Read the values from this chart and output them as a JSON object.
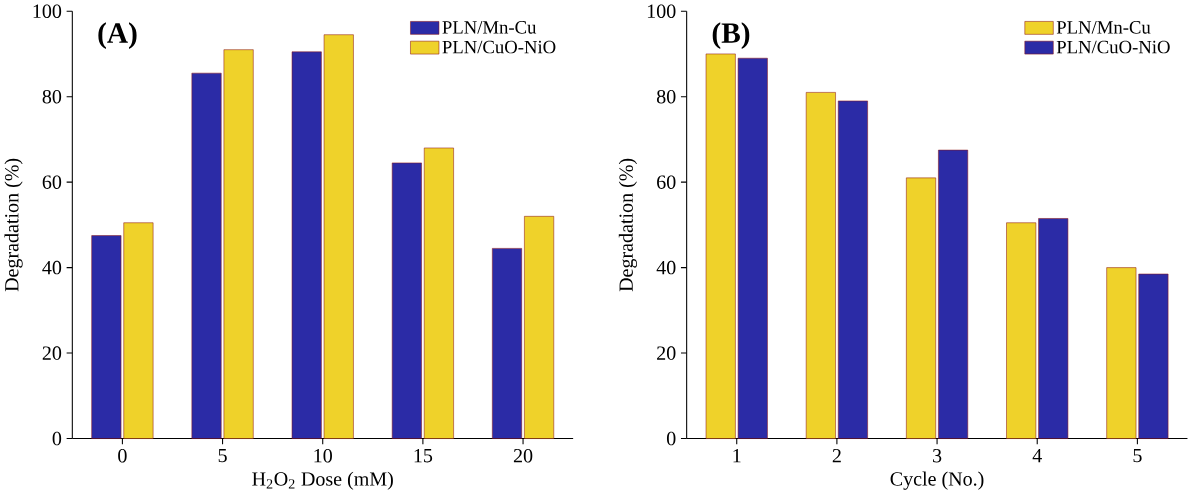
{
  "chart_data": [
    {
      "type": "bar",
      "annotations": [
        "(A)"
      ],
      "xlabel": "H$_{2}$O$_{2}$ Dose (mM)",
      "ylabel": "Degradation (%)",
      "categories": [
        "0",
        "5",
        "10",
        "15",
        "20"
      ],
      "series": [
        {
          "name": "PLN/Mn-Cu",
          "color": "#2b2ba6",
          "values": [
            47.5,
            85.5,
            90.5,
            64.5,
            44.5
          ]
        },
        {
          "name": "PLN/CuO-NiO",
          "color": "#efd22a",
          "values": [
            50.5,
            91,
            94.5,
            68,
            52
          ]
        }
      ],
      "ylim": [
        0,
        100
      ],
      "yticks": [
        0,
        20,
        40,
        60,
        80,
        100
      ],
      "legend": "top right"
    },
    {
      "type": "bar",
      "annotations": [
        "(B)"
      ],
      "xlabel": "Cycle (No.)",
      "ylabel": "Degradation (%)",
      "categories": [
        "1",
        "2",
        "3",
        "4",
        "5"
      ],
      "series": [
        {
          "name": "PLN/Mn-Cu",
          "color": "#efd22a",
          "values": [
            90,
            81,
            61,
            50.5,
            40
          ]
        },
        {
          "name": "PLN/CuO-NiO",
          "color": "#2b2ba6",
          "values": [
            89,
            79,
            67.5,
            51.5,
            38.5
          ]
        }
      ],
      "ylim": [
        0,
        100
      ],
      "yticks": [
        0,
        20,
        40,
        60,
        80,
        100
      ],
      "legend": "top right"
    }
  ]
}
